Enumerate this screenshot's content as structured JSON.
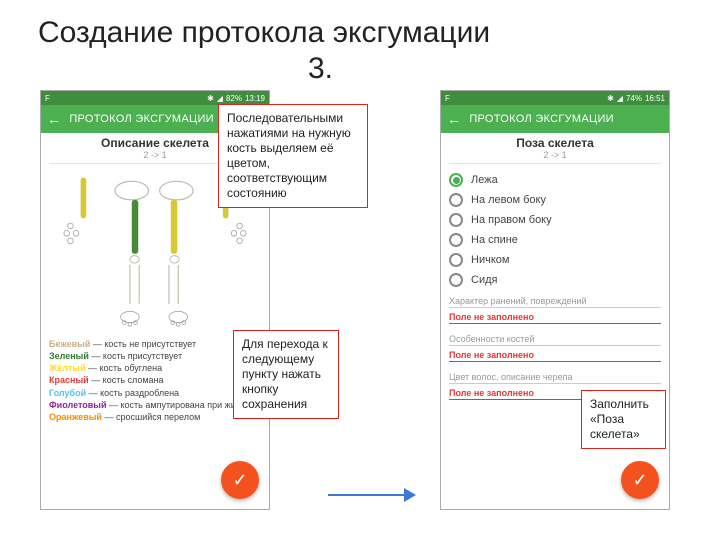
{
  "slide": {
    "title": "Создание протокола эксгумации",
    "step": "3."
  },
  "left_phone": {
    "statusbar": {
      "left_icon": "F",
      "battery": "82%",
      "time": "13:19"
    },
    "appbar": {
      "title": "ПРОТОКОЛ ЭКСГУМАЦИИ"
    },
    "section": {
      "title": "Описание скелета",
      "crumb": "2 -> 1"
    },
    "legend": [
      {
        "color": "#c8b08a",
        "key": "Бежевый",
        "text": " — кость не присутствует"
      },
      {
        "color": "#2e7d32",
        "key": "Зеленый",
        "text": " — кость присутствует"
      },
      {
        "color": "#fdd835",
        "key": "Жёлтый",
        "text": " — кость обуглена"
      },
      {
        "color": "#e53935",
        "key": "Красный",
        "text": " — кость сломана"
      },
      {
        "color": "#4fc3f7",
        "key": "Голубой",
        "text": " — кость раздроблена"
      },
      {
        "color": "#8e24aa",
        "key": "Фиолетовый",
        "text": " — кость ампутирована при жизни"
      },
      {
        "color": "#fb8c00",
        "key": "Оранжевый",
        "text": " — сросшийся перелом"
      }
    ]
  },
  "right_phone": {
    "statusbar": {
      "left_icon": "F",
      "battery": "74%",
      "time": "16:51"
    },
    "appbar": {
      "title": "ПРОТОКОЛ ЭКСГУМАЦИИ"
    },
    "section": {
      "title": "Поза скелета",
      "crumb": "2 -> 1"
    },
    "options": [
      "Лежа",
      "На левом боку",
      "На правом боку",
      "На спине",
      "Ничком",
      "Сидя"
    ],
    "selected": 0,
    "fields": [
      {
        "label": "Характер ранений, повреждений",
        "error": "Поле не заполнено"
      },
      {
        "label": "Особенности костей",
        "error": "Поле не заполнено"
      },
      {
        "label": "Цвет волос, описание черепа",
        "error": "Поле не заполнено"
      }
    ]
  },
  "callouts": {
    "c1": "Последовательными нажатиями на нужную кость выделяем её цветом, соответствующим состоянию",
    "c2": "Для перехода к следующему пункту нажать кнопку сохранения",
    "c3": "Заполнить «Поза скелета»"
  },
  "colors": {
    "green": "#4caf50",
    "fab": "#f4511e",
    "callout_border": "#d8261e",
    "arrow": "#3f78d8"
  }
}
